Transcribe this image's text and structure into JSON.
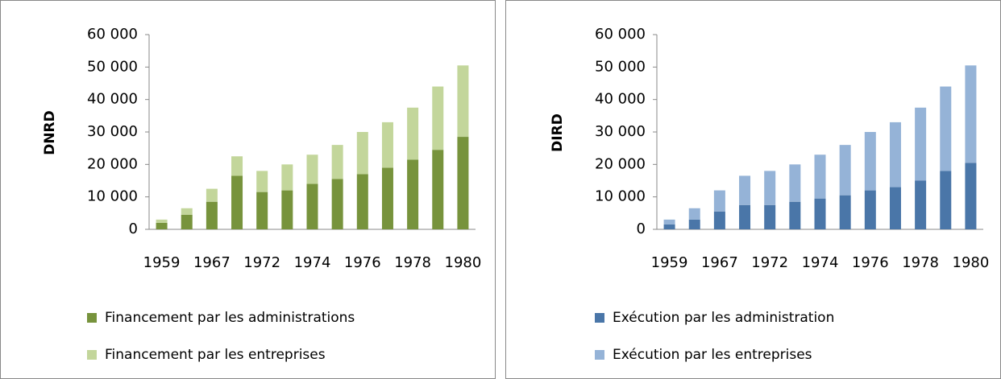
{
  "chart_data": [
    {
      "type": "stacked_bar",
      "ylabel": "DNRD",
      "categories": [
        "1959",
        null,
        "1967",
        null,
        "1972",
        null,
        "1974",
        null,
        "1976",
        null,
        "1978",
        null,
        "1980"
      ],
      "series": [
        {
          "name": "Financement par les administrations",
          "color": "#77933c",
          "values": [
            2000,
            4500,
            8500,
            16500,
            11500,
            12000,
            14000,
            15500,
            17000,
            19000,
            21500,
            24500,
            28500
          ]
        },
        {
          "name": "Financement par les entreprises",
          "color": "#c3d69b",
          "values": [
            1000,
            2000,
            4000,
            6000,
            6500,
            8000,
            9000,
            10500,
            13000,
            14000,
            16000,
            19500,
            22000
          ]
        }
      ],
      "ylim": [
        0,
        60000
      ],
      "yticks": [
        0,
        {
          "value": 10000,
          "label": "10 000"
        },
        {
          "value": 20000,
          "label": "20 000"
        },
        {
          "value": 30000,
          "label": "30 000"
        },
        {
          "value": 40000,
          "label": "40 000"
        },
        {
          "value": 50000,
          "label": "50 000"
        },
        {
          "value": 60000,
          "label": "60 000"
        }
      ]
    },
    {
      "type": "stacked_bar",
      "ylabel": "DIRD",
      "categories": [
        "1959",
        null,
        "1967",
        null,
        "1972",
        null,
        "1974",
        null,
        "1976",
        null,
        "1978",
        null,
        "1980"
      ],
      "series": [
        {
          "name": "Exécution par les administration",
          "color": "#4a76a8",
          "values": [
            1500,
            3000,
            5500,
            7500,
            7500,
            8500,
            9500,
            10500,
            12000,
            13000,
            15000,
            18000,
            20500
          ]
        },
        {
          "name": "Exécution par les entreprises",
          "color": "#95b3d7",
          "values": [
            1500,
            3500,
            6500,
            9000,
            10500,
            11500,
            13500,
            15500,
            18000,
            20000,
            22500,
            26000,
            30000
          ]
        }
      ],
      "ylim": [
        0,
        60000
      ],
      "yticks": [
        0,
        {
          "value": 10000,
          "label": "10 000"
        },
        {
          "value": 20000,
          "label": "20 000"
        },
        {
          "value": 30000,
          "label": "30 000"
        },
        {
          "value": 40000,
          "label": "40 000"
        },
        {
          "value": 50000,
          "label": "50 000"
        },
        {
          "value": 60000,
          "label": "60 000"
        }
      ]
    }
  ]
}
